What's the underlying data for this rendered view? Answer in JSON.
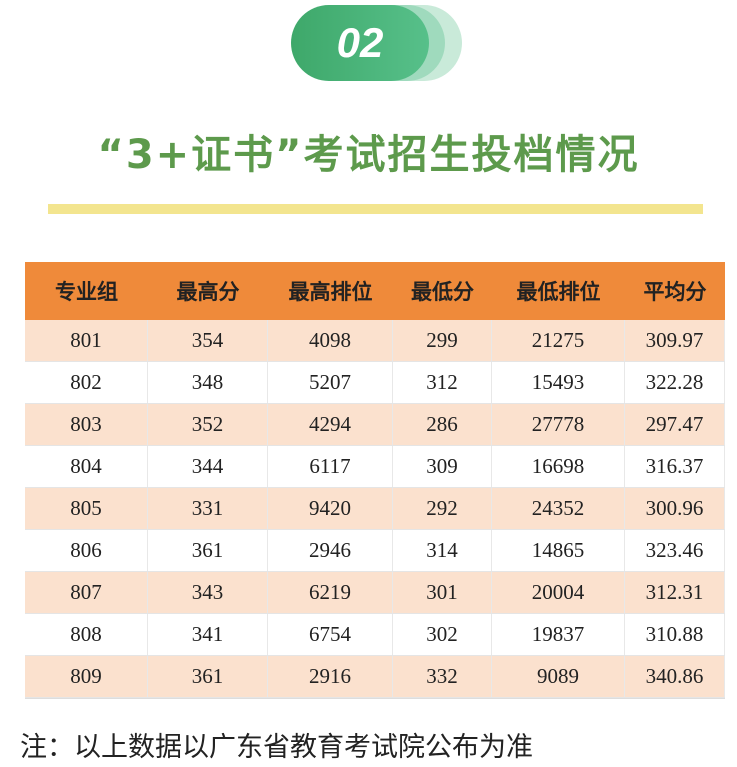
{
  "header": {
    "badge": "02",
    "title": "“3+证书”考试招生投档情况"
  },
  "table": {
    "columns": [
      "专业组",
      "最高分",
      "最高排位",
      "最低分",
      "最低排位",
      "平均分"
    ],
    "rows": [
      [
        "801",
        "354",
        "4098",
        "299",
        "21275",
        "309.97"
      ],
      [
        "802",
        "348",
        "5207",
        "312",
        "15493",
        "322.28"
      ],
      [
        "803",
        "352",
        "4294",
        "286",
        "27778",
        "297.47"
      ],
      [
        "804",
        "344",
        "6117",
        "309",
        "16698",
        "316.37"
      ],
      [
        "805",
        "331",
        "9420",
        "292",
        "24352",
        "300.96"
      ],
      [
        "806",
        "361",
        "2946",
        "314",
        "14865",
        "323.46"
      ],
      [
        "807",
        "343",
        "6219",
        "301",
        "20004",
        "312.31"
      ],
      [
        "808",
        "341",
        "6754",
        "302",
        "19837",
        "310.88"
      ],
      [
        "809",
        "361",
        "2916",
        "332",
        "9089",
        "340.86"
      ]
    ]
  },
  "footer": {
    "note": "注：以上数据以广东省教育考试院公布为准"
  }
}
